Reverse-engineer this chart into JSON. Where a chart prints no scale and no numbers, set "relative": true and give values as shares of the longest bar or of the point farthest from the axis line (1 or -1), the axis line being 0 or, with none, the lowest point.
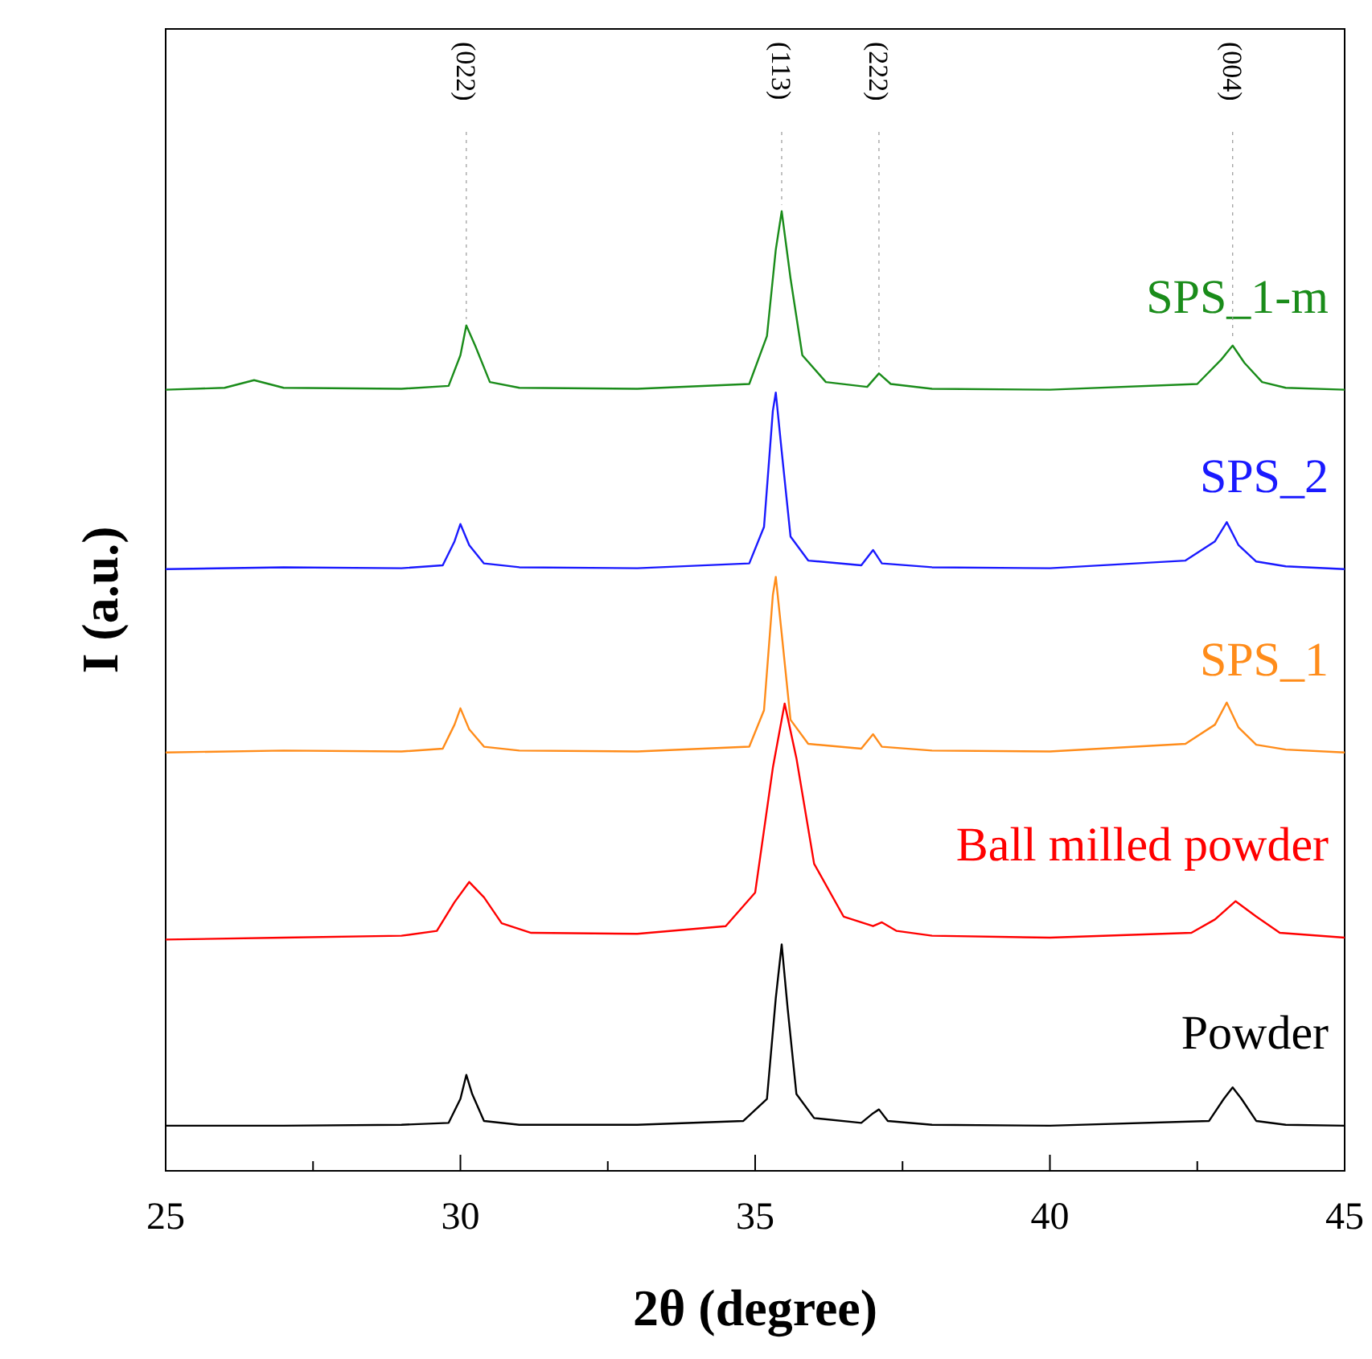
{
  "chart_data": {
    "type": "line",
    "xlabel": "2θ (degree)",
    "ylabel": "I (a.u.)",
    "relative": true,
    "tick_labels": "x",
    "xlim": [
      25,
      45
    ],
    "xticks": [
      25,
      {
        "value": 27.5,
        "label": null
      },
      30,
      {
        "value": 32.5,
        "label": null
      },
      35,
      {
        "value": 37.5,
        "label": null
      },
      40,
      {
        "value": 42.5,
        "label": null
      },
      45
    ],
    "marker": "none",
    "line_style": "solid",
    "annotations": [
      {
        "text": "(022)",
        "x": 30.1,
        "y": 0.881
      },
      {
        "text": "(113)",
        "x": 35.45,
        "y": 1.0
      },
      {
        "text": "(222)",
        "x": 37.1,
        "y": 0.831
      },
      {
        "text": "(004)",
        "x": 43.1,
        "y": 0.86
      }
    ],
    "series": [
      {
        "name": "Powder",
        "color": "#000000",
        "x": [
          25,
          27,
          29,
          29.8,
          30.0,
          30.1,
          30.2,
          30.4,
          31,
          33,
          34.8,
          35.2,
          35.35,
          35.45,
          35.55,
          35.7,
          36.0,
          36.8,
          37.0,
          37.1,
          37.25,
          38,
          40,
          42.7,
          42.95,
          43.1,
          43.25,
          43.5,
          44,
          45
        ],
        "values": [
          0.047,
          0.047,
          0.048,
          0.05,
          0.075,
          0.1,
          0.08,
          0.052,
          0.048,
          0.048,
          0.052,
          0.075,
          0.18,
          0.236,
          0.17,
          0.08,
          0.055,
          0.05,
          0.06,
          0.064,
          0.052,
          0.048,
          0.047,
          0.052,
          0.075,
          0.087,
          0.075,
          0.052,
          0.048,
          0.047
        ]
      },
      {
        "name": "Ball milled powder",
        "color": "#ff0000",
        "x": [
          25,
          27,
          29,
          29.6,
          29.9,
          30.15,
          30.4,
          30.7,
          31.2,
          33,
          34.5,
          35.0,
          35.3,
          35.5,
          35.7,
          36.0,
          36.5,
          37.0,
          37.15,
          37.4,
          38,
          40,
          42.4,
          42.8,
          43.15,
          43.5,
          43.9,
          45
        ],
        "values": [
          0.241,
          0.243,
          0.245,
          0.25,
          0.28,
          0.301,
          0.285,
          0.258,
          0.248,
          0.247,
          0.255,
          0.29,
          0.42,
          0.487,
          0.43,
          0.32,
          0.265,
          0.255,
          0.259,
          0.25,
          0.245,
          0.243,
          0.248,
          0.262,
          0.281,
          0.265,
          0.248,
          0.243
        ]
      },
      {
        "name": "SPS_1",
        "color": "#ff8c1a",
        "x": [
          25,
          27,
          29,
          29.7,
          29.9,
          30.0,
          30.15,
          30.4,
          31,
          33,
          34.9,
          35.15,
          35.3,
          35.35,
          35.45,
          35.6,
          35.9,
          36.8,
          37.0,
          37.15,
          38,
          40,
          42.3,
          42.8,
          43.0,
          43.2,
          43.5,
          44,
          45
        ],
        "values": [
          0.436,
          0.438,
          0.437,
          0.44,
          0.465,
          0.482,
          0.46,
          0.442,
          0.438,
          0.437,
          0.442,
          0.48,
          0.6,
          0.619,
          0.56,
          0.47,
          0.445,
          0.44,
          0.455,
          0.442,
          0.438,
          0.437,
          0.445,
          0.465,
          0.488,
          0.462,
          0.444,
          0.439,
          0.436
        ]
      },
      {
        "name": "SPS_2",
        "color": "#1a1aff",
        "x": [
          25,
          27,
          29,
          29.7,
          29.9,
          30.0,
          30.15,
          30.4,
          31,
          33,
          34.9,
          35.15,
          35.3,
          35.35,
          35.45,
          35.6,
          35.9,
          36.8,
          37.0,
          37.15,
          38,
          40,
          42.3,
          42.8,
          43.0,
          43.2,
          43.5,
          44,
          45
        ],
        "values": [
          0.627,
          0.629,
          0.628,
          0.631,
          0.656,
          0.674,
          0.652,
          0.633,
          0.629,
          0.628,
          0.633,
          0.671,
          0.792,
          0.811,
          0.75,
          0.661,
          0.636,
          0.631,
          0.647,
          0.633,
          0.629,
          0.628,
          0.636,
          0.656,
          0.676,
          0.652,
          0.635,
          0.63,
          0.627
        ]
      },
      {
        "name": "SPS_1-m",
        "color": "#1a8c1a",
        "x": [
          25,
          26,
          26.5,
          27,
          29,
          29.8,
          30.0,
          30.1,
          30.25,
          30.5,
          31,
          33,
          34.9,
          35.2,
          35.35,
          35.45,
          35.6,
          35.8,
          36.2,
          36.9,
          37.1,
          37.3,
          38,
          40,
          42.5,
          42.9,
          43.1,
          43.3,
          43.6,
          44,
          45
        ],
        "values": [
          0.814,
          0.816,
          0.824,
          0.816,
          0.815,
          0.818,
          0.85,
          0.881,
          0.86,
          0.822,
          0.816,
          0.815,
          0.82,
          0.87,
          0.96,
          1.0,
          0.93,
          0.85,
          0.822,
          0.817,
          0.831,
          0.82,
          0.815,
          0.814,
          0.82,
          0.845,
          0.86,
          0.842,
          0.822,
          0.816,
          0.814
        ]
      }
    ]
  }
}
